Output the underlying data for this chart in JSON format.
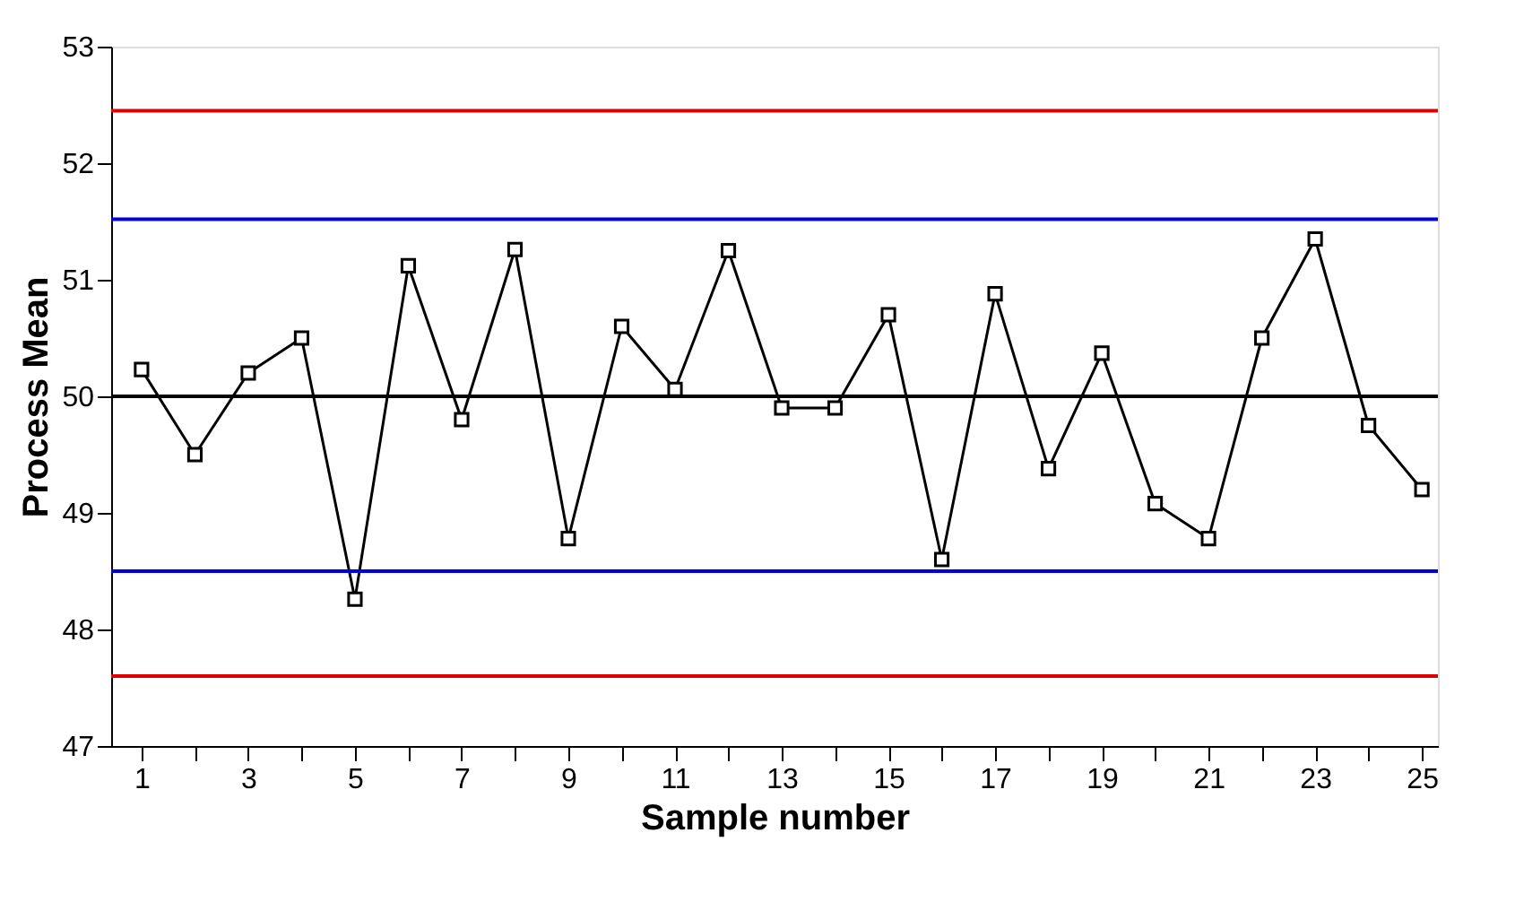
{
  "chart_data": {
    "type": "line",
    "xlabel": "Sample number",
    "ylabel": "Process Mean",
    "x": [
      1,
      2,
      3,
      4,
      5,
      6,
      7,
      8,
      9,
      10,
      11,
      12,
      13,
      14,
      15,
      16,
      17,
      18,
      19,
      20,
      21,
      22,
      23,
      24,
      25
    ],
    "series": [
      {
        "color": "#000000",
        "values": [
          50.23,
          49.5,
          50.2,
          50.5,
          48.26,
          51.12,
          49.8,
          51.26,
          48.78,
          50.6,
          50.06,
          51.25,
          49.9,
          49.9,
          50.7,
          48.6,
          50.88,
          49.38,
          50.37,
          49.08,
          48.78,
          50.5,
          51.35,
          49.75,
          49.2
        ]
      }
    ],
    "xlim": [
      0.43,
      25.3
    ],
    "xticks": [
      1,
      {
        "value": 2,
        "label": null
      },
      3,
      {
        "value": 4,
        "label": null
      },
      5,
      {
        "value": 6,
        "label": null
      },
      7,
      {
        "value": 8,
        "label": null
      },
      9,
      {
        "value": 10,
        "label": null
      },
      11,
      {
        "value": 12,
        "label": null
      },
      13,
      {
        "value": 14,
        "label": null
      },
      15,
      {
        "value": 16,
        "label": null
      },
      17,
      {
        "value": 18,
        "label": null
      },
      19,
      {
        "value": 20,
        "label": null
      },
      21,
      {
        "value": 22,
        "label": null
      },
      23,
      {
        "value": 24,
        "label": null
      },
      25
    ],
    "ylim": [
      47,
      53
    ],
    "yticks": [
      47,
      48,
      49,
      50,
      51,
      52,
      53
    ],
    "ref_lines": [
      {
        "axis": "y",
        "value": 52.45,
        "color": "#e00000"
      },
      {
        "axis": "y",
        "value": 51.52,
        "color": "#0000e0"
      },
      {
        "axis": "y",
        "value": 50,
        "color": "#000000"
      },
      {
        "axis": "y",
        "value": 48.5,
        "color": "#0000e0"
      },
      {
        "axis": "y",
        "value": 47.6,
        "color": "#e00000"
      }
    ],
    "marker": "square",
    "line_style": "solid"
  }
}
